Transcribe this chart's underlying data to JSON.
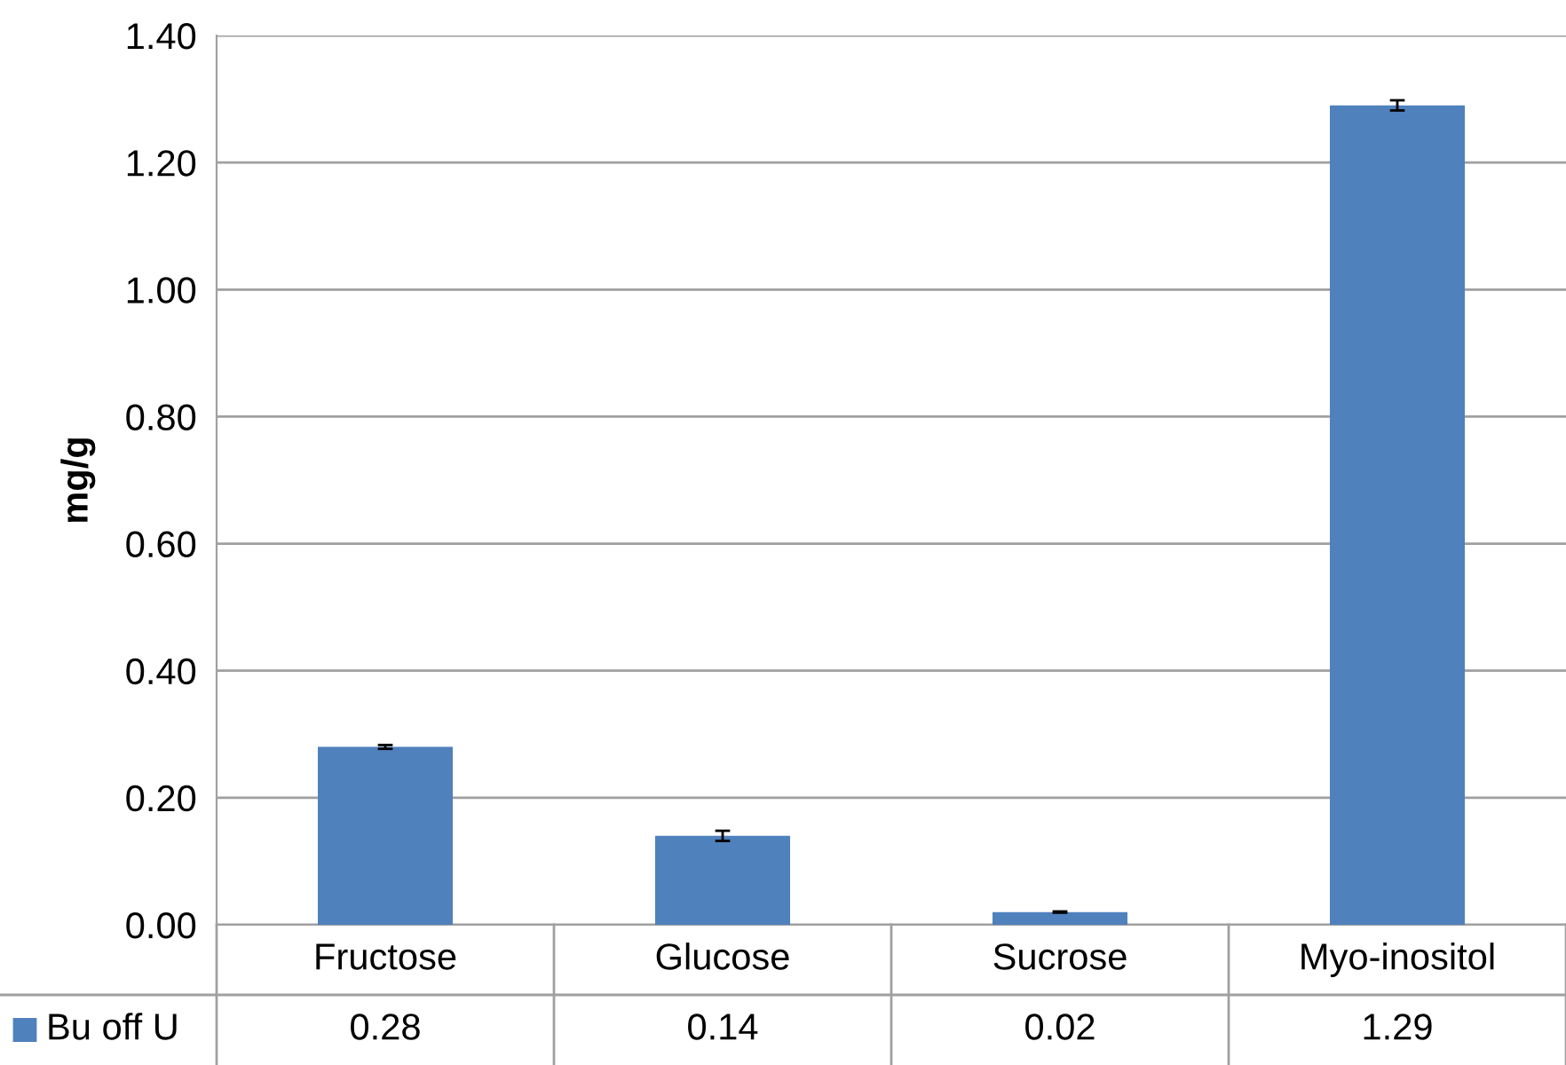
{
  "chart_data": {
    "type": "bar",
    "ylabel": "mg/g",
    "categories": [
      "Fructose",
      "Glucose",
      "Sucrose",
      "Myo-inositol"
    ],
    "series": [
      {
        "name": "Bu off U",
        "color": "#4f81bd",
        "values": [
          0.28,
          0.14,
          0.02,
          1.29
        ],
        "errors": [
          0.003,
          0.008,
          0.001,
          0.008
        ]
      }
    ],
    "ylim": [
      0,
      1.4
    ],
    "yticks": [
      {
        "value": 0,
        "label": "0.00"
      },
      {
        "value": 0.2,
        "label": "0.20"
      },
      {
        "value": 0.4,
        "label": "0.40"
      },
      {
        "value": 0.6,
        "label": "0.60"
      },
      {
        "value": 0.8,
        "label": "0.80"
      },
      {
        "value": 1.0,
        "label": "1.00"
      },
      {
        "value": 1.2,
        "label": "1.20"
      },
      {
        "value": 1.4,
        "label": "1.40"
      }
    ],
    "grid": "y",
    "data_labels": true
  }
}
